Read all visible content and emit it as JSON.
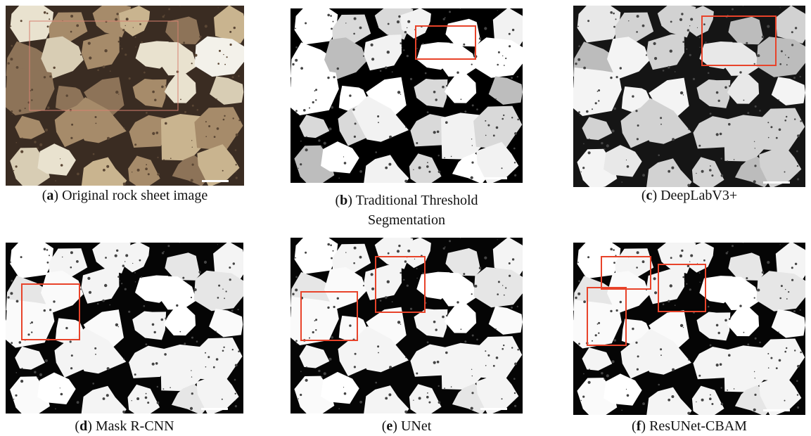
{
  "panels": [
    {
      "label": "a",
      "caption": "Original rock sheet image"
    },
    {
      "label": "b",
      "caption": "Traditional Threshold Segmentation"
    },
    {
      "label": "c",
      "caption": "DeepLabV3+"
    },
    {
      "label": "d",
      "caption": "Mask R-CNN"
    },
    {
      "label": "e",
      "caption": "UNet"
    },
    {
      "label": "f",
      "caption": "ResUNet-CBAM"
    }
  ]
}
